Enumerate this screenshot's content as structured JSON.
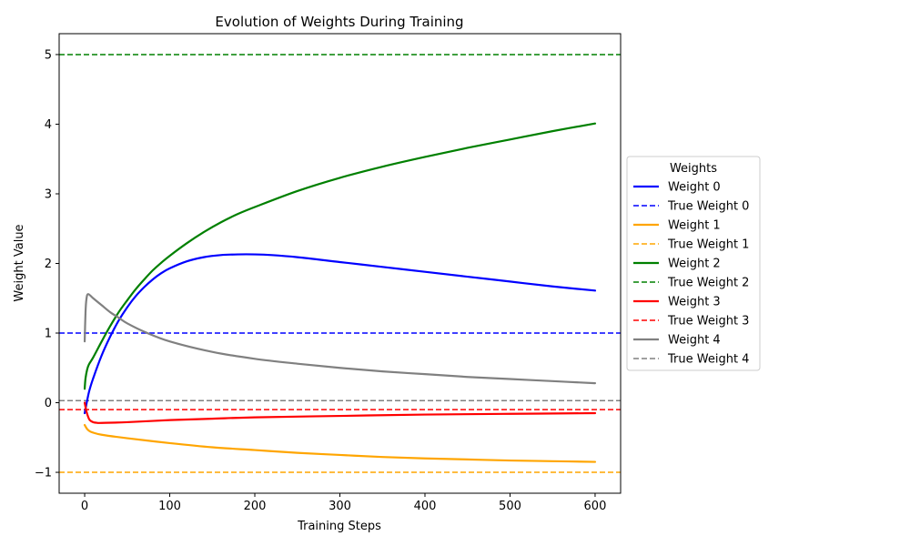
{
  "chart_data": {
    "type": "line",
    "title": "Evolution of Weights During Training",
    "xlabel": "Training Steps",
    "ylabel": "Weight Value",
    "xlim": [
      -30,
      630
    ],
    "ylim": [
      -1.3,
      5.3
    ],
    "xticks": [
      0,
      100,
      200,
      300,
      400,
      500,
      600
    ],
    "yticks": [
      -1,
      0,
      1,
      2,
      3,
      4,
      5
    ],
    "ytick_labels": [
      "−1",
      "0",
      "1",
      "2",
      "3",
      "4",
      "5"
    ],
    "grid": false,
    "legend": {
      "title": "Weights",
      "placement": "center-right outside",
      "entries": [
        {
          "label": "Weight 0",
          "color": "#0000ff",
          "style": "solid"
        },
        {
          "label": "True Weight 0",
          "color": "#0000ff",
          "style": "dashed"
        },
        {
          "label": "Weight 1",
          "color": "#ffa500",
          "style": "solid"
        },
        {
          "label": "True Weight 1",
          "color": "#ffa500",
          "style": "dashed"
        },
        {
          "label": "Weight 2",
          "color": "#008000",
          "style": "solid"
        },
        {
          "label": "True Weight 2",
          "color": "#008000",
          "style": "dashed"
        },
        {
          "label": "Weight 3",
          "color": "#ff0000",
          "style": "solid"
        },
        {
          "label": "True Weight 3",
          "color": "#ff0000",
          "style": "dashed"
        },
        {
          "label": "Weight 4",
          "color": "#808080",
          "style": "solid"
        },
        {
          "label": "True Weight 4",
          "color": "#808080",
          "style": "dashed"
        }
      ]
    },
    "series": [
      {
        "name": "Weight 0",
        "color": "#0000ff",
        "x": [
          0,
          5,
          10,
          20,
          30,
          40,
          50,
          60,
          70,
          80,
          90,
          100,
          120,
          140,
          160,
          180,
          200,
          220,
          250,
          300,
          350,
          400,
          450,
          500,
          550,
          600
        ],
        "y": [
          -0.15,
          0.15,
          0.35,
          0.68,
          0.95,
          1.18,
          1.37,
          1.53,
          1.66,
          1.77,
          1.86,
          1.93,
          2.03,
          2.09,
          2.12,
          2.13,
          2.13,
          2.12,
          2.09,
          2.02,
          1.95,
          1.88,
          1.81,
          1.74,
          1.67,
          1.61
        ]
      },
      {
        "name": "Weight 1",
        "color": "#ffa500",
        "x": [
          0,
          3,
          6,
          10,
          20,
          50,
          100,
          150,
          200,
          250,
          300,
          350,
          400,
          450,
          500,
          550,
          600
        ],
        "y": [
          -0.32,
          -0.38,
          -0.41,
          -0.43,
          -0.46,
          -0.51,
          -0.58,
          -0.64,
          -0.68,
          -0.72,
          -0.75,
          -0.78,
          -0.8,
          -0.815,
          -0.83,
          -0.84,
          -0.85
        ]
      },
      {
        "name": "Weight 2",
        "color": "#008000",
        "x": [
          0,
          1,
          3,
          5,
          10,
          20,
          30,
          40,
          50,
          60,
          70,
          80,
          90,
          100,
          120,
          140,
          160,
          180,
          200,
          250,
          300,
          350,
          400,
          450,
          500,
          550,
          600
        ],
        "y": [
          0.2,
          0.35,
          0.48,
          0.55,
          0.65,
          0.88,
          1.1,
          1.3,
          1.47,
          1.63,
          1.77,
          1.9,
          2.01,
          2.11,
          2.29,
          2.45,
          2.59,
          2.71,
          2.81,
          3.04,
          3.23,
          3.39,
          3.53,
          3.66,
          3.78,
          3.9,
          4.01
        ]
      },
      {
        "name": "Weight 3",
        "color": "#ff0000",
        "x": [
          0,
          2,
          4,
          6,
          10,
          15,
          20,
          50,
          100,
          150,
          200,
          300,
          400,
          500,
          600
        ],
        "y": [
          0.0,
          -0.12,
          -0.2,
          -0.25,
          -0.28,
          -0.29,
          -0.29,
          -0.28,
          -0.25,
          -0.23,
          -0.21,
          -0.19,
          -0.17,
          -0.16,
          -0.15
        ]
      },
      {
        "name": "Weight 4",
        "color": "#808080",
        "x": [
          0,
          1,
          2,
          4,
          10,
          20,
          30,
          40,
          50,
          70,
          100,
          150,
          200,
          250,
          300,
          350,
          400,
          450,
          500,
          550,
          600
        ],
        "y": [
          0.88,
          1.3,
          1.48,
          1.56,
          1.5,
          1.4,
          1.3,
          1.22,
          1.14,
          1.02,
          0.88,
          0.73,
          0.63,
          0.56,
          0.5,
          0.45,
          0.41,
          0.37,
          0.34,
          0.31,
          0.28
        ]
      }
    ],
    "reference_lines": [
      {
        "name": "True Weight 0",
        "color": "#0000ff",
        "y": 1.0
      },
      {
        "name": "True Weight 1",
        "color": "#ffa500",
        "y": -1.0
      },
      {
        "name": "True Weight 2",
        "color": "#008000",
        "y": 5.0
      },
      {
        "name": "True Weight 3",
        "color": "#ff0000",
        "y": -0.1
      },
      {
        "name": "True Weight 4",
        "color": "#808080",
        "y": 0.03
      }
    ]
  }
}
